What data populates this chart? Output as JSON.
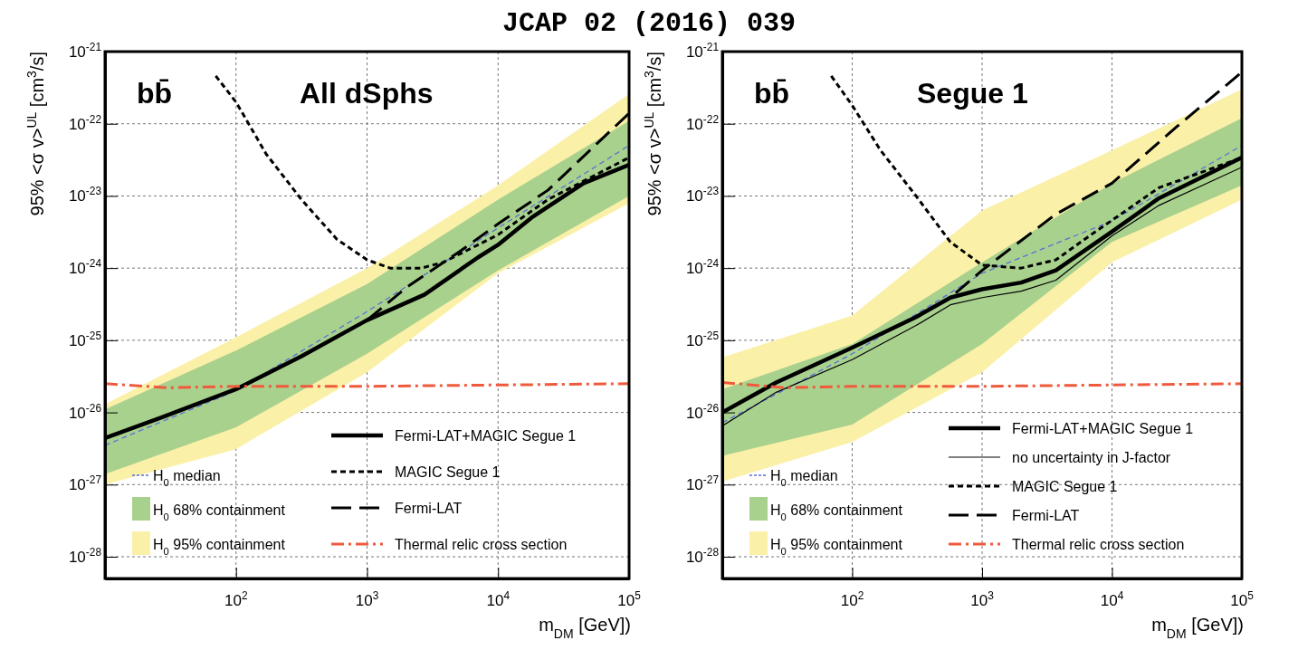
{
  "chart_data": [
    {
      "type": "line",
      "title": "JCAP 02 (2016) 039",
      "xlabel": "m$_{DM}$ [GeV])",
      "ylabel": "95% <σ v>$^{UL}$ [cm$^{3}$/s]",
      "annotations": [
        "bb̄",
        "All dSphs"
      ],
      "log": "xy",
      "grid": true,
      "legend": "bottom",
      "xlim": [
        10,
        100000
      ],
      "ylim": [
        5e-29,
        1e-21
      ],
      "xticks": [
        {
          "value": 100,
          "label": "10$^{2}$"
        },
        {
          "value": 1000,
          "label": "10$^{3}$"
        },
        {
          "value": 10000,
          "label": "10$^{4}$"
        },
        {
          "value": 100000,
          "label": "10$^{5}$"
        }
      ],
      "yticks": [
        {
          "value": 1e-28,
          "label": "10$^{-28}$"
        },
        {
          "value": 1e-27,
          "label": "10$^{-27}$"
        },
        {
          "value": 1e-26,
          "label": "10$^{-26}$"
        },
        {
          "value": 1e-25,
          "label": "10$^{-25}$"
        },
        {
          "value": 1e-24,
          "label": "10$^{-24}$"
        },
        {
          "value": 1e-23,
          "label": "10$^{-23}$"
        },
        {
          "value": 1e-22,
          "label": "10$^{-22}$"
        },
        {
          "value": 1e-21,
          "label": "10$^{-21}$"
        }
      ],
      "series": [
        {
          "name": "H$_{0}$ median",
          "type": "line",
          "color": "#5b6fd6",
          "line_style": "dotted",
          "x": [
            10,
            100,
            1000,
            10000,
            100000
          ],
          "values": [
            3.5e-27,
            2e-26,
            2.5e-25,
            3.6e-24,
            5e-23
          ]
        },
        {
          "name": "H$_{0}$ 68% containment",
          "type": "line",
          "color": "#a9d18e",
          "x": [
            10,
            100,
            1000,
            10000,
            100000
          ],
          "values": [
            null,
            null,
            null,
            null,
            null
          ],
          "lower": [
            1.4e-27,
            6.2e-27,
            6.5e-26,
            9.3e-25,
            1e-23
          ],
          "upper": [
            1.1e-26,
            7.2e-26,
            6e-25,
            8.9e-24,
            1.1e-22
          ]
        },
        {
          "name": "H$_{0}$ 95% containment",
          "type": "line",
          "color": "#fbf0a8",
          "x": [
            10,
            100,
            1000,
            10000,
            100000
          ],
          "values": [
            null,
            null,
            null,
            null,
            null
          ],
          "lower": [
            1e-27,
            3.1e-27,
            3.6e-26,
            8.5e-25,
            7.9e-24
          ],
          "upper": [
            1.3e-26,
            1.1e-25,
            1e-24,
            1.4e-23,
            2.6e-22
          ]
        },
        {
          "name": "Fermi-LAT+MAGIC Segue 1",
          "type": "line",
          "color": "#000000",
          "line_style": "solid",
          "x": [
            10,
            27,
            100,
            316,
            1000,
            2750,
            7000,
            10000,
            18000,
            45000,
            100000
          ],
          "values": [
            4.4e-27,
            8.5e-27,
            2.1e-26,
            6e-26,
            1.9e-25,
            4.3e-25,
            1.4e-24,
            2.1e-24,
            5e-24,
            1.5e-23,
            2.7e-23
          ]
        },
        {
          "name": "MAGIC Segue 1",
          "type": "line",
          "color": "#000000",
          "line_style": "dotted",
          "x": [
            70,
            100,
            170,
            316,
            590,
            1000,
            1500,
            2600,
            3800,
            10000,
            24000,
            100000
          ],
          "values": [
            4.6e-22,
            2e-22,
            3.8e-23,
            8.9e-24,
            2.5e-24,
            1.3e-24,
            1e-24,
            1e-24,
            1.2e-24,
            2.9e-24,
            8.9e-24,
            3.4e-23
          ]
        },
        {
          "name": "Fermi-LAT",
          "type": "line",
          "color": "#000000",
          "line_style": "dashed",
          "x": [
            10,
            27,
            100,
            316,
            1000,
            2000,
            5100,
            10000,
            24000,
            100000
          ],
          "values": [
            4.4e-27,
            8.5e-27,
            2.1e-26,
            6e-26,
            1.9e-25,
            5.4e-25,
            1.7e-24,
            4.1e-24,
            1.2e-23,
            1.4e-22
          ]
        },
        {
          "name": "Thermal relic cross section",
          "type": "line",
          "color": "#f05a3c",
          "line_style": "dashdot",
          "x": [
            10,
            30,
            100,
            1000,
            10000,
            100000
          ],
          "values": [
            2.5e-26,
            2.2e-26,
            2.3e-26,
            2.3e-26,
            2.4e-26,
            2.5e-26
          ]
        }
      ]
    },
    {
      "type": "line",
      "xlabel": "m$_{DM}$ [GeV])",
      "ylabel": "95% <σ v>$^{UL}$ [cm$^{3}$/s]",
      "annotations": [
        "bb̄",
        "Segue 1"
      ],
      "log": "xy",
      "grid": true,
      "legend": "bottom",
      "xlim": [
        10,
        100000
      ],
      "ylim": [
        5e-29,
        1e-21
      ],
      "xticks": [
        {
          "value": 100,
          "label": "10$^{2}$"
        },
        {
          "value": 1000,
          "label": "10$^{3}$"
        },
        {
          "value": 10000,
          "label": "10$^{4}$"
        },
        {
          "value": 100000,
          "label": "10$^{5}$"
        }
      ],
      "yticks": [
        {
          "value": 1e-28,
          "label": "10$^{-28}$"
        },
        {
          "value": 1e-27,
          "label": "10$^{-27}$"
        },
        {
          "value": 1e-26,
          "label": "10$^{-26}$"
        },
        {
          "value": 1e-25,
          "label": "10$^{-25}$"
        },
        {
          "value": 1e-24,
          "label": "10$^{-24}$"
        },
        {
          "value": 1e-23,
          "label": "10$^{-23}$"
        },
        {
          "value": 1e-22,
          "label": "10$^{-22}$"
        },
        {
          "value": 1e-21,
          "label": "10$^{-21}$"
        }
      ],
      "series": [
        {
          "name": "H$_{0}$ median",
          "type": "line",
          "color": "#5b6fd6",
          "line_style": "dotted",
          "x": [
            10,
            100,
            1000,
            10000,
            100000
          ],
          "values": [
            7.2e-27,
            6.5e-26,
            8.5e-25,
            4.5e-24,
            5e-23
          ]
        },
        {
          "name": "H$_{0}$ 68% containment",
          "type": "line",
          "color": "#a9d18e",
          "x": [
            10,
            100,
            1000,
            10000,
            100000
          ],
          "values": [
            null,
            null,
            null,
            null,
            null
          ],
          "lower": [
            2.5e-27,
            6.8e-27,
            8.9e-26,
            2.3e-24,
            1.4e-23
          ],
          "upper": [
            2.1e-26,
            8.9e-26,
            1.2e-24,
            1.5e-23,
            1.2e-22
          ]
        },
        {
          "name": "H$_{0}$ 95% containment",
          "type": "line",
          "color": "#fbf0a8",
          "x": [
            10,
            100,
            1000,
            10000,
            100000
          ],
          "values": [
            null,
            null,
            null,
            null,
            null
          ],
          "lower": [
            1.1e-27,
            3.9e-27,
            3.6e-26,
            1.2e-24,
            8.9e-24
          ],
          "upper": [
            5.8e-26,
            2.2e-25,
            6.3e-24,
            4.3e-23,
            3e-22
          ]
        },
        {
          "name": "Fermi-LAT+MAGIC Segue 1",
          "type": "line",
          "color": "#000000",
          "line_style": "solid",
          "x": [
            10,
            26,
            100,
            310,
            570,
            1000,
            2000,
            3700,
            10000,
            23000,
            100000
          ],
          "values": [
            1e-26,
            2.6e-26,
            7.9e-26,
            2.1e-25,
            3.9e-25,
            5.1e-25,
            6.3e-25,
            9.3e-25,
            3.2e-24,
            9.3e-24,
            3.4e-23
          ]
        },
        {
          "name": "no uncertainty in J-factor",
          "type": "line",
          "color": "#000000",
          "line_style": "solid",
          "x": [
            10,
            26,
            100,
            310,
            570,
            1000,
            2000,
            3700,
            10000,
            23000,
            100000
          ],
          "values": [
            6.5e-27,
            1.9e-26,
            5.4e-26,
            1.6e-25,
            3.1e-25,
            3.9e-25,
            4.8e-25,
            6.8e-25,
            2.8e-24,
            7.4e-24,
            2.5e-23
          ]
        },
        {
          "name": "MAGIC Segue 1",
          "type": "line",
          "color": "#000000",
          "line_style": "dotted",
          "x": [
            69,
            100,
            165,
            310,
            570,
            1000,
            2000,
            3700,
            6900,
            10000,
            23000,
            100000
          ],
          "values": [
            4.6e-22,
            1.8e-22,
            4.3e-23,
            1e-23,
            2.3e-24,
            1.1e-24,
            1e-24,
            1.3e-24,
            2.9e-24,
            4.6e-24,
            1.3e-23,
            3.4e-23
          ]
        },
        {
          "name": "Fermi-LAT",
          "type": "line",
          "color": "#000000",
          "line_style": "dashed",
          "x": [
            10,
            26,
            100,
            310,
            570,
            1000,
            3700,
            10000,
            32000,
            100000
          ],
          "values": [
            1e-26,
            2.6e-26,
            7.9e-26,
            2.1e-25,
            3.9e-25,
            9.3e-25,
            5.6e-24,
            1.5e-23,
            9.3e-23,
            5.2e-22
          ]
        },
        {
          "name": "Thermal relic cross section",
          "type": "line",
          "color": "#f05a3c",
          "line_style": "dashdot",
          "x": [
            10,
            30,
            100,
            1000,
            10000,
            100000
          ],
          "values": [
            2.6e-26,
            2.2e-26,
            2.3e-26,
            2.3e-26,
            2.4e-26,
            2.5e-26
          ]
        }
      ]
    }
  ]
}
